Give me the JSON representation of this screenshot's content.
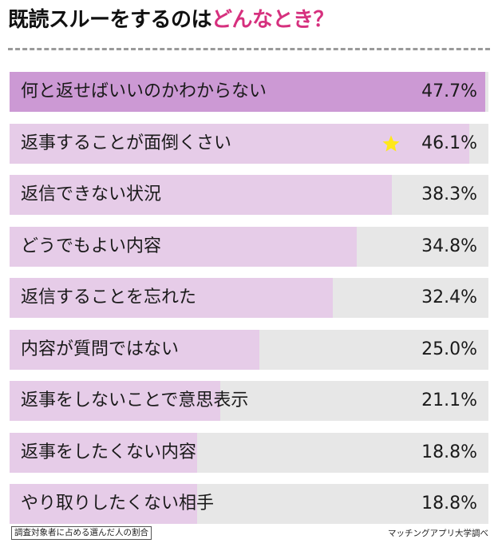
{
  "title": {
    "prefix": "既読スルーをするのは",
    "highlight": "どんなとき？"
  },
  "colors": {
    "highlight": "#d6307e",
    "bar_top": "#cc99d4",
    "bar": "#e6cce8",
    "track": "#e7e7e7",
    "star": "#ffe81a"
  },
  "chart_data": {
    "type": "bar",
    "orientation": "horizontal",
    "categories": [
      "何と返せばいいのかわからない",
      "返事することが面倒くさい",
      "返信できない状況",
      "どうでもよい内容",
      "返信することを忘れた",
      "内容が質問ではない",
      "返事をしないことで意思表示",
      "返事をしたくない内容",
      "やり取りしたくない相手"
    ],
    "values": [
      47.7,
      46.1,
      38.3,
      34.8,
      32.4,
      25.0,
      21.1,
      18.8,
      18.8
    ],
    "value_labels": [
      "47.7%",
      "46.1%",
      "38.3%",
      "34.8%",
      "32.4%",
      "25.0%",
      "21.1%",
      "18.8%",
      "18.8%"
    ],
    "xlim": [
      0,
      48
    ],
    "star_index": 1
  },
  "footnote": "調査対象者に占める選んだ人の割合",
  "source": "マッチングアプリ大学調べ"
}
